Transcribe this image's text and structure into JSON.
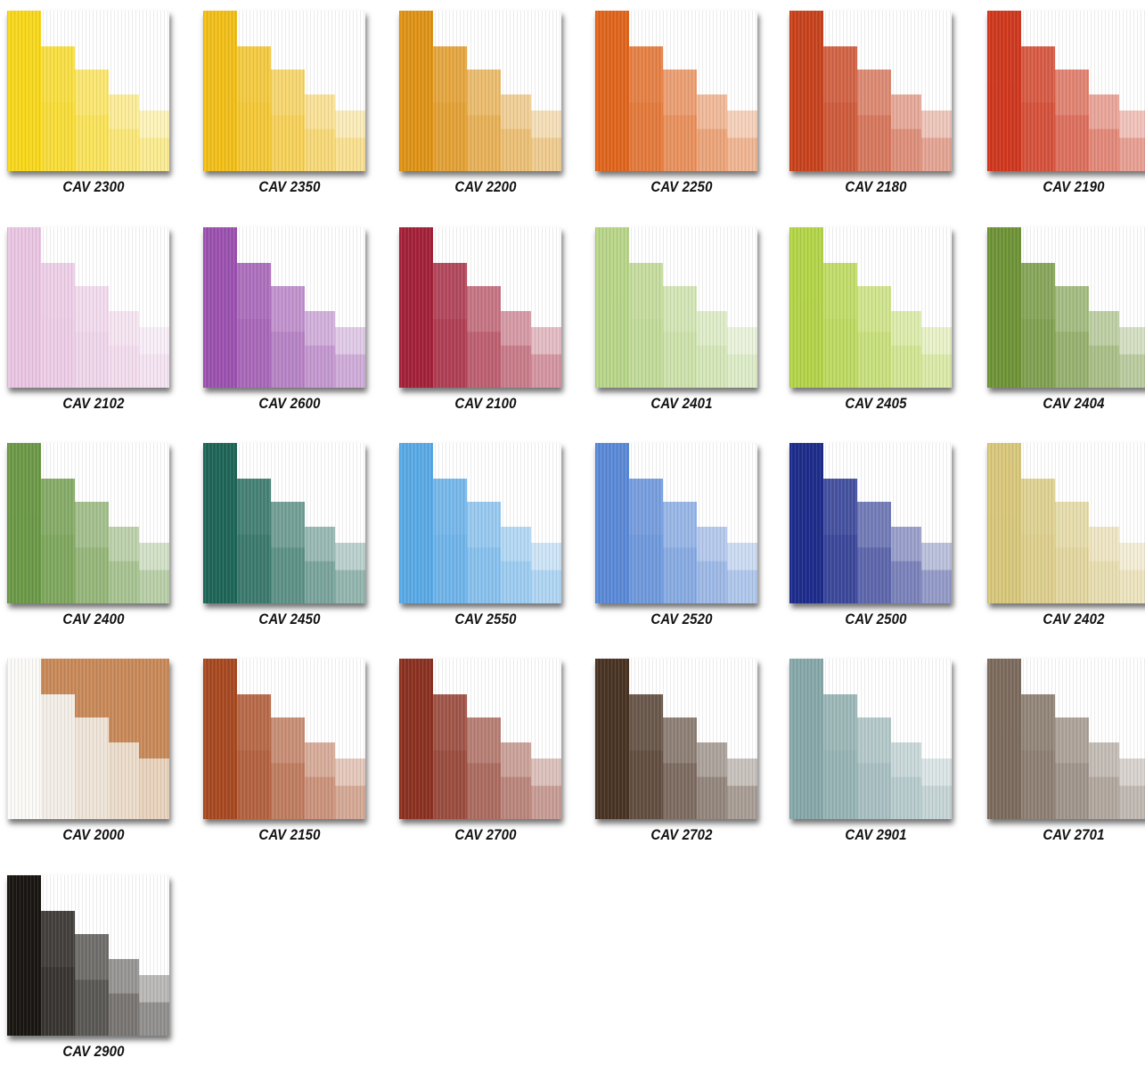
{
  "swatches": [
    {
      "code": "CAV 2300",
      "color": "#f8d81c",
      "style": "steps"
    },
    {
      "code": "CAV 2350",
      "color": "#f2bf1a",
      "style": "steps"
    },
    {
      "code": "CAV 2200",
      "color": "#df9418",
      "style": "steps"
    },
    {
      "code": "CAV 2250",
      "color": "#e0661e",
      "style": "steps"
    },
    {
      "code": "CAV 2180",
      "color": "#c8431e",
      "style": "steps"
    },
    {
      "code": "CAV 2190",
      "color": "#d0391f",
      "style": "steps"
    },
    {
      "code": "CAV 2102",
      "color": "#eac6e3",
      "style": "steps"
    },
    {
      "code": "CAV 2600",
      "color": "#9c52b0",
      "style": "steps"
    },
    {
      "code": "CAV 2100",
      "color": "#a4223a",
      "style": "steps"
    },
    {
      "code": "CAV 2401",
      "color": "#b9d68a",
      "style": "steps"
    },
    {
      "code": "CAV 2405",
      "color": "#b4d54a",
      "style": "steps"
    },
    {
      "code": "CAV 2404",
      "color": "#6f9438",
      "style": "steps"
    },
    {
      "code": "CAV 2400",
      "color": "#6d9a48",
      "style": "steps"
    },
    {
      "code": "CAV 2450",
      "color": "#1f6658",
      "style": "steps"
    },
    {
      "code": "CAV 2550",
      "color": "#5aaae6",
      "style": "steps"
    },
    {
      "code": "CAV 2520",
      "color": "#5b8ad8",
      "style": "steps"
    },
    {
      "code": "CAV 2500",
      "color": "#1e2d8c",
      "style": "steps"
    },
    {
      "code": "CAV 2402",
      "color": "#d9c87c",
      "style": "steps"
    },
    {
      "code": "CAV 2000",
      "color": "#ffffff",
      "bg": "#c98a5a",
      "style": "white"
    },
    {
      "code": "CAV 2150",
      "color": "#a84a22",
      "style": "steps"
    },
    {
      "code": "CAV 2700",
      "color": "#8c3222",
      "style": "steps"
    },
    {
      "code": "CAV 2702",
      "color": "#4a3424",
      "style": "steps"
    },
    {
      "code": "CAV 2901",
      "color": "#87a8aa",
      "style": "steps"
    },
    {
      "code": "CAV 2701",
      "color": "#7d6c5e",
      "style": "steps"
    },
    {
      "code": "CAV 2900",
      "color": "#1a1612",
      "style": "steps"
    }
  ]
}
